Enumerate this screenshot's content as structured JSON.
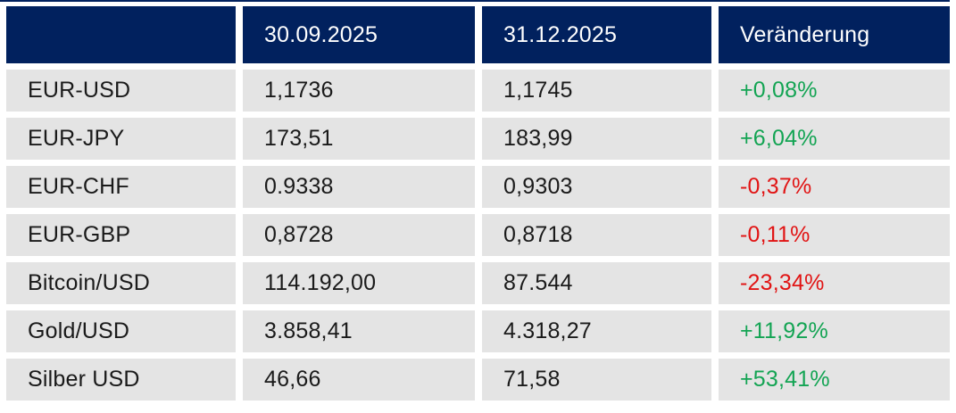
{
  "chart_data": {
    "type": "table",
    "title": "",
    "columns": [
      "",
      "30.09.2025",
      "31.12.2025",
      "Veränderung"
    ],
    "rows": [
      {
        "label": "EUR-USD",
        "values": [
          "1,1736",
          "1,1745"
        ],
        "change": "+0,08%",
        "direction": "up"
      },
      {
        "label": "EUR-JPY",
        "values": [
          "173,51",
          "183,99"
        ],
        "change": "+6,04%",
        "direction": "up"
      },
      {
        "label": "EUR-CHF",
        "values": [
          "0.9338",
          "0,9303"
        ],
        "change": "-0,37%",
        "direction": "down"
      },
      {
        "label": "EUR-GBP",
        "values": [
          "0,8728",
          "0,8718"
        ],
        "change": "-0,11%",
        "direction": "down"
      },
      {
        "label": "Bitcoin/USD",
        "values": [
          "114.192,00",
          "87.544"
        ],
        "change": "-23,34%",
        "direction": "down"
      },
      {
        "label": "Gold/USD",
        "values": [
          "3.858,41",
          "4.318,27"
        ],
        "change": "+11,92%",
        "direction": "up"
      },
      {
        "label": "Silber USD",
        "values": [
          "46,66",
          "71,58"
        ],
        "change": "+53,41%",
        "direction": "up"
      }
    ],
    "colors": {
      "header_bg": "#01215e",
      "header_text": "#ffffff",
      "row_bg": "#e4e4e4",
      "body_text": "#1a1a1a",
      "positive": "#13a453",
      "negative": "#e11414"
    }
  }
}
